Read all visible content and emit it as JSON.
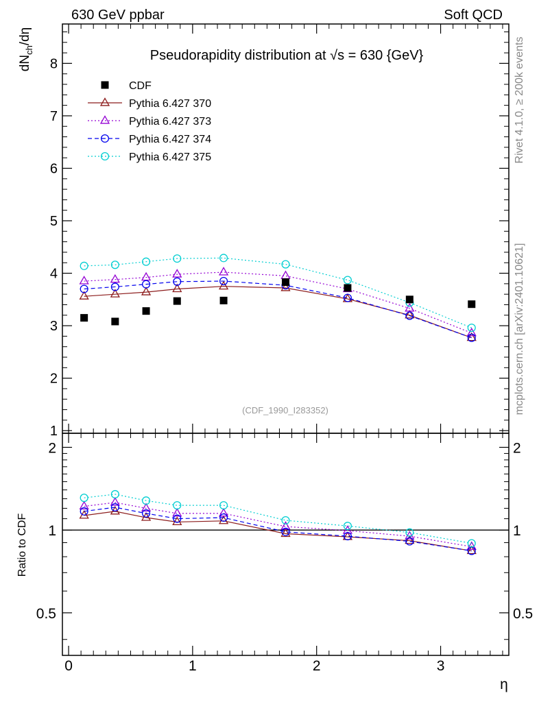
{
  "header": {
    "left": "630 GeV ppbar",
    "right": "Soft QCD"
  },
  "side_labels": {
    "rivet": "Rivet 4.1.0, ≥ 200k events",
    "mcplots": "mcplots.cern.ch [arXiv:2401.10621]"
  },
  "chart_data": {
    "type": "line",
    "title": "Pseudorapidity distribution at √s = 630 {GeV}",
    "analysis_id": "(CDF_1990_I283352)",
    "xlabel": "η",
    "ylabel": "dN_ch/dη",
    "ylabel_main": "dN",
    "ylabel_sub": "ch",
    "ylabel_tail": "/dη",
    "ratio_ylabel": "Ratio to CDF",
    "xlim": [
      -0.05,
      3.55
    ],
    "ylim": [
      0.95,
      8.75
    ],
    "ratio_ylim": [
      0.35,
      2.25
    ],
    "x_ticks": [
      0,
      1,
      2,
      3
    ],
    "y_ticks": [
      1,
      2,
      3,
      4,
      5,
      6,
      7,
      8
    ],
    "ratio_ticks": [
      0.5,
      1,
      2
    ],
    "ratio_tick_labels": [
      "0.5",
      "1",
      "2"
    ],
    "x": [
      0.125,
      0.375,
      0.625,
      0.875,
      1.25,
      1.75,
      2.25,
      2.75,
      3.25
    ],
    "data": {
      "name": "CDF",
      "color": "#000000",
      "values": [
        3.15,
        3.08,
        3.28,
        3.47,
        3.48,
        3.83,
        3.72,
        3.5,
        3.41
      ]
    },
    "series": [
      {
        "name": "Pythia 6.427 370",
        "color": "#8b1a1a",
        "dash": "",
        "marker": "triangle",
        "values": [
          3.56,
          3.6,
          3.64,
          3.7,
          3.75,
          3.72,
          3.51,
          3.2,
          2.77
        ],
        "ratio": [
          1.13,
          1.17,
          1.11,
          1.07,
          1.08,
          0.97,
          0.945,
          0.915,
          0.84
        ]
      },
      {
        "name": "Pythia 6.427 373",
        "color": "#9400d3",
        "dash": "2,3",
        "marker": "triangle",
        "values": [
          3.85,
          3.88,
          3.92,
          3.98,
          4.02,
          3.95,
          3.7,
          3.33,
          2.86
        ],
        "ratio": [
          1.22,
          1.26,
          1.2,
          1.15,
          1.15,
          1.03,
          0.995,
          0.95,
          0.87
        ]
      },
      {
        "name": "Pythia 6.427 374",
        "color": "#0000ee",
        "dash": "6,4",
        "marker": "circle",
        "values": [
          3.7,
          3.74,
          3.79,
          3.84,
          3.85,
          3.77,
          3.53,
          3.19,
          2.77
        ],
        "ratio": [
          1.17,
          1.21,
          1.15,
          1.1,
          1.11,
          0.985,
          0.95,
          0.91,
          0.84
        ]
      },
      {
        "name": "Pythia 6.427 375",
        "color": "#00ced1",
        "dash": "2,3",
        "marker": "circle",
        "values": [
          4.14,
          4.16,
          4.22,
          4.28,
          4.29,
          4.17,
          3.87,
          3.44,
          2.96
        ],
        "ratio": [
          1.31,
          1.35,
          1.28,
          1.23,
          1.23,
          1.085,
          1.035,
          0.98,
          0.895
        ]
      }
    ]
  }
}
